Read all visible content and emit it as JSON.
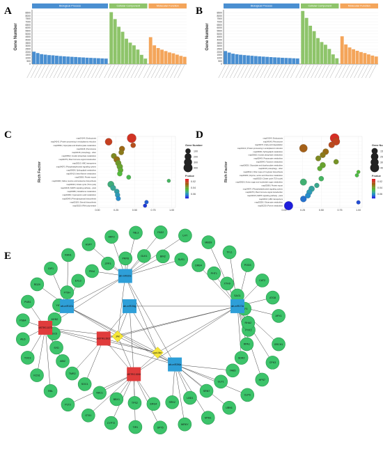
{
  "panels": [
    {
      "label": "A"
    },
    {
      "label": "B"
    },
    {
      "label": "C"
    },
    {
      "label": "D"
    },
    {
      "label": "E"
    }
  ],
  "chart_data": [
    {
      "panel": "A",
      "type": "bar",
      "ylabel": "Gene Number",
      "ylim": [
        0,
        9000
      ],
      "yticks": [
        0,
        500,
        1000,
        1500,
        2000,
        2500,
        3000,
        3500,
        4000,
        4500,
        5000,
        5500,
        6000,
        6500,
        7000,
        7500,
        8000,
        8500
      ],
      "groups": [
        {
          "name": "Biological Process",
          "color": "#4a8fd1",
          "values": [
            2050,
            1820,
            1640,
            1560,
            1480,
            1440,
            1380,
            1320,
            1280,
            1240,
            1200,
            1170,
            1120,
            1090,
            1050,
            1020,
            990,
            960,
            930,
            900
          ]
        },
        {
          "name": "Cellular Component",
          "color": "#8ec46a",
          "values": [
            8600,
            7450,
            6180,
            5350,
            4200,
            3550,
            3100,
            2400,
            1520,
            900
          ]
        },
        {
          "name": "Molecular Function",
          "color": "#f4a55a",
          "values": [
            4450,
            3100,
            2650,
            2380,
            2150,
            1920,
            1780,
            1560,
            1350,
            1200
          ]
        }
      ]
    },
    {
      "panel": "B",
      "type": "bar",
      "ylabel": "Gene Number",
      "ylim": [
        0,
        9000
      ],
      "yticks": [
        0,
        500,
        1000,
        1500,
        2000,
        2500,
        3000,
        3500,
        4000,
        4500,
        5000,
        5500,
        6000,
        6500,
        7000,
        7500,
        8000,
        8500
      ],
      "groups": [
        {
          "name": "Biological Process",
          "color": "#4a8fd1",
          "values": [
            2150,
            1900,
            1720,
            1620,
            1540,
            1480,
            1420,
            1370,
            1320,
            1270,
            1230,
            1190,
            1150,
            1110,
            1080,
            1040,
            1010,
            980,
            950,
            920
          ]
        },
        {
          "name": "Cellular Component",
          "color": "#8ec46a",
          "values": [
            8800,
            7650,
            6350,
            5450,
            4300,
            3650,
            3200,
            2500,
            1600,
            950
          ]
        },
        {
          "name": "Molecular Function",
          "color": "#f4a55a",
          "values": [
            4600,
            3250,
            2750,
            2450,
            2200,
            1980,
            1820,
            1600,
            1400,
            1250
          ]
        }
      ]
    },
    {
      "panel": "C",
      "type": "scatter",
      "ylabel": "Rich Factor",
      "xlim": [
        0,
        1.05
      ],
      "xticks": [
        "0.00",
        "0.25",
        "0.50",
        "0.75",
        "1.00"
      ],
      "xtick_values": [
        0,
        0.25,
        0.5,
        0.75,
        1.0
      ],
      "size_legend_title": "Gene Number",
      "size_legend": [
        "100",
        "200",
        "300",
        "400"
      ],
      "size_legend_values": [
        100,
        200,
        300,
        400
      ],
      "color_legend_title": "P.value",
      "color_legend": [
        "0.02",
        "0.04",
        "0.06"
      ],
      "terms": [
        "map04144 | Endocytosis",
        "map04141 | Protein processing in endoplasmic reticulum",
        "map00562 | Glyoxylate and dicarboxylate metabolism",
        "map04146 | Peroxisome",
        "map04136 | Autophagy - other",
        "map00562 | Inositol phosphate metabolism",
        "map04075 | Plant hormone signal transduction",
        "map02010 | ABC transporters",
        "map04070 | Phosphatidylinositol signaling system",
        "map00600 | Sphingolipid metabolism",
        "map00410 | beta-Alanine metabolism",
        "map03060 | Protein export",
        "map00290 | Valine, leucine and isoleucine biosynthesis",
        "map00020 | Citrate cycle (TCA cycle)",
        "map04016 | MAPK signaling pathway - plant",
        "map00480 | Glutathione metabolism",
        "map00460 | Cyanoamino acid metabolism",
        "map00940 | Phenylpropanoid biosynthesis",
        "map00100 | Steroid biosynthesis",
        "map03020 | RNA polymerase"
      ],
      "points": [
        {
          "x": 0.46,
          "size": 420,
          "p": 0.005
        },
        {
          "x": 0.15,
          "size": 230,
          "p": 0.008
        },
        {
          "x": 0.48,
          "size": 90,
          "p": 0.012
        },
        {
          "x": 0.33,
          "size": 120,
          "p": 0.018
        },
        {
          "x": 0.32,
          "size": 95,
          "p": 0.022
        },
        {
          "x": 0.22,
          "size": 110,
          "p": 0.025
        },
        {
          "x": 0.26,
          "size": 160,
          "p": 0.02
        },
        {
          "x": 0.28,
          "size": 130,
          "p": 0.028
        },
        {
          "x": 0.3,
          "size": 140,
          "p": 0.03
        },
        {
          "x": 0.31,
          "size": 100,
          "p": 0.032
        },
        {
          "x": 0.3,
          "size": 90,
          "p": 0.035
        },
        {
          "x": 0.42,
          "size": 60,
          "p": 0.038
        },
        {
          "x": 0.96,
          "size": 30,
          "p": 0.04
        },
        {
          "x": 0.18,
          "size": 180,
          "p": 0.043
        },
        {
          "x": 0.21,
          "size": 110,
          "p": 0.046
        },
        {
          "x": 0.26,
          "size": 90,
          "p": 0.048
        },
        {
          "x": 0.27,
          "size": 80,
          "p": 0.05
        },
        {
          "x": 0.28,
          "size": 70,
          "p": 0.053
        },
        {
          "x": 0.66,
          "size": 40,
          "p": 0.058
        },
        {
          "x": 0.64,
          "size": 35,
          "p": 0.062
        }
      ]
    },
    {
      "panel": "D",
      "type": "scatter",
      "ylabel": "Rich Factor",
      "xlim": [
        0,
        1.05
      ],
      "xticks": [
        "0.00",
        "0.25",
        "0.50",
        "0.75",
        "1.00"
      ],
      "xtick_values": [
        0,
        0.25,
        0.5,
        0.75,
        1.0
      ],
      "size_legend_title": "Gene Number",
      "size_legend": [
        "150",
        "250",
        "300",
        "400"
      ],
      "size_legend_values": [
        150,
        250,
        300,
        400
      ],
      "color_legend_title": "P.value",
      "color_legend": [
        "0.02",
        "0.04",
        "0.06"
      ],
      "terms": [
        "map04144 | Endocytosis",
        "map04146 | Peroxisome",
        "map00071 | Fatty acid degradation",
        "map04141 | Protein processing in endoplasmic reticulum",
        "map00600 | Sphingolipid metabolism",
        "map00562 | Inositol phosphate metabolism",
        "map00640 | Propanoate metabolism",
        "map00940 | Tyrosine metabolism",
        "map00630 | Glyoxylate and dicarboxylate metabolism",
        "map04136 | Autophagy - other",
        "map00514 | Other types of O-glycan biosynthesis",
        "map00260 | Glycine, serine and threonine metabolism",
        "map00020 | Citrate cycle (TCA cycle)",
        "map00520 | Amino sugar and nucleotide sugar metabolism",
        "map03060 | Protein export",
        "map04070 | Phosphatidylinositol signaling system",
        "map04075 | Plant hormone signal transduction",
        "map04016 | MAPK signaling pathway - plant",
        "map02010 | ABC transporters",
        "map00250 | Glutamate metabolism",
        "map00230 | Purine metabolism"
      ],
      "points": [
        {
          "x": 0.68,
          "size": 420,
          "p": 0.004
        },
        {
          "x": 0.7,
          "size": 260,
          "p": 0.009
        },
        {
          "x": 0.64,
          "size": 150,
          "p": 0.011
        },
        {
          "x": 0.26,
          "size": 300,
          "p": 0.016
        },
        {
          "x": 0.56,
          "size": 150,
          "p": 0.019
        },
        {
          "x": 0.52,
          "size": 120,
          "p": 0.022
        },
        {
          "x": 0.46,
          "size": 110,
          "p": 0.025
        },
        {
          "x": 0.7,
          "size": 90,
          "p": 0.027
        },
        {
          "x": 0.52,
          "size": 130,
          "p": 0.03
        },
        {
          "x": 0.48,
          "size": 80,
          "p": 0.032
        },
        {
          "x": 1.0,
          "size": 30,
          "p": 0.035
        },
        {
          "x": 0.98,
          "size": 35,
          "p": 0.037
        },
        {
          "x": 0.5,
          "size": 90,
          "p": 0.04
        },
        {
          "x": 0.26,
          "size": 190,
          "p": 0.042
        },
        {
          "x": 0.44,
          "size": 80,
          "p": 0.045
        },
        {
          "x": 0.37,
          "size": 140,
          "p": 0.047
        },
        {
          "x": 0.34,
          "size": 120,
          "p": 0.05
        },
        {
          "x": 0.32,
          "size": 110,
          "p": 0.053
        },
        {
          "x": 0.26,
          "size": 160,
          "p": 0.056
        },
        {
          "x": 1.0,
          "size": 40,
          "p": 0.06
        },
        {
          "x": 0.06,
          "size": 380,
          "p": 0.065
        }
      ]
    },
    {
      "panel": "E",
      "type": "network",
      "node_types": {
        "mirna": "#2e9fd8",
        "lncrna": "#e03c3c",
        "hub": "#f5e63a",
        "gene": "#3cc36a"
      },
      "mirnas": [
        {
          "id": "m1",
          "label": "ath-miR396a"
        },
        {
          "id": "m2",
          "label": "ath-miR156g"
        },
        {
          "id": "m3",
          "label": "ath-miR167a"
        },
        {
          "id": "m4",
          "label": "ath-miR172d"
        },
        {
          "id": "m5",
          "label": "ath-miR319c"
        }
      ],
      "lncrnas": [
        {
          "id": "l1",
          "label": "MSTRG.3921"
        },
        {
          "id": "l2",
          "label": "MSTRG.1573"
        },
        {
          "id": "l3",
          "label": "MSTRG.5208"
        }
      ],
      "hubs": [
        {
          "id": "h1",
          "label": "JAK"
        },
        {
          "id": "h2",
          "label": "ppd-like"
        }
      ],
      "genes": [
        "PYK2",
        "GRCH1",
        "RPA1",
        "CPK3",
        "SDR2",
        "HPS7",
        "YAB5",
        "CLPS",
        "GLF1",
        "UBN1",
        "SRN7",
        "MTB1",
        "LBD1",
        "WRKY",
        "SRK2",
        "SPT5",
        "ERG4",
        "TIR1",
        "TPS2",
        "CYP72",
        "BBX1",
        "GT41",
        "NAC1",
        "PLT3",
        "SOC1",
        "RBL",
        "TMR2",
        "KCS1",
        "ABI2",
        "TOC3",
        "SYD",
        "AIL6",
        "CDC5",
        "PSB4",
        "MYB2",
        "PUB1",
        "YKT6",
        "RD29",
        "FTSH",
        "GIF1",
        "EXL3",
        "RAN1",
        "PIN4",
        "HSP7",
        "ZFP3",
        "ARF2",
        "PRP8",
        "TBL3",
        "GLK1",
        "FAD2",
        "BIN2",
        "LHY",
        "SUS1",
        "MBD9",
        "DRB4",
        "TFL1",
        "PHT1",
        "POD3",
        "XTH9",
        "CAT2",
        "SAG1",
        "ATG8",
        "ELF3",
        "APX1",
        "RHA2"
      ]
    }
  ]
}
